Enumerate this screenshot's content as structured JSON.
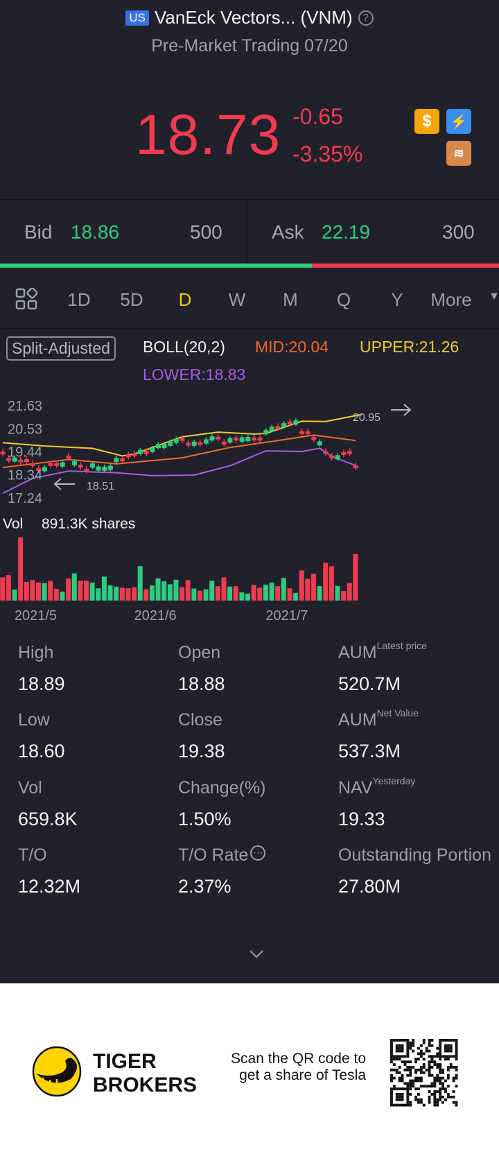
{
  "header": {
    "market_badge": "US",
    "title": "VanEck Vectors... (VNM)",
    "help_icon": "question-circle-icon",
    "subtitle": "Pre-Market Trading 07/20"
  },
  "quote": {
    "price": "18.73",
    "change": "-0.65",
    "change_pct": "-3.35%",
    "badges": [
      "dollar-icon",
      "lightning-level1-icon",
      "stack-a-icon"
    ],
    "badge_colors": {
      "dollar": "#f5a60c",
      "lightning": "#3a8ef0",
      "stack": "#d98a4a"
    },
    "down_color": "#f23a50",
    "up_color": "#2ecc80"
  },
  "orderbook": {
    "bid_label": "Bid",
    "bid_price": "18.86",
    "bid_size": "500",
    "ask_label": "Ask",
    "ask_price": "22.19",
    "ask_size": "300",
    "bid_ratio": 0.625
  },
  "periods": {
    "grid_icon": "grid-layout-icon",
    "items": [
      "1D",
      "5D",
      "D",
      "W",
      "M",
      "Q",
      "Y",
      "More"
    ],
    "active": "D",
    "more_icon": "caret-down-icon"
  },
  "indicators": {
    "split_adjusted": "Split-Adjusted",
    "boll": "BOLL(20,2)",
    "mid": "MID:20.04",
    "upper": "UPPER:21.26",
    "lower": "LOWER:18.83",
    "colors": {
      "mid": "#f0692e",
      "upper": "#f2cd2e",
      "lower": "#a45ce6"
    }
  },
  "chart_data": {
    "type": "candlestick",
    "y_ticks": [
      "21.63",
      "20.53",
      "19.44",
      "18.34",
      "17.24"
    ],
    "ylim": [
      17.24,
      21.63
    ],
    "x_ticks": [
      "2021/5",
      "2021/6",
      "2021/7"
    ],
    "x_tick_index": [
      6.5,
      26.5,
      48.5
    ],
    "annotations": {
      "high": "20.95",
      "low": "18.51"
    },
    "closes": [
      19.38,
      19.07,
      19.07,
      19.0,
      19.02,
      18.83,
      18.59,
      18.61,
      18.83,
      18.83,
      18.83,
      19.18,
      18.89,
      18.75,
      18.56,
      18.78,
      18.64,
      18.63,
      18.67,
      19.05,
      19.05,
      19.24,
      19.29,
      19.43,
      19.4,
      19.52,
      19.71,
      19.71,
      19.82,
      19.96,
      20.02,
      19.8,
      19.82,
      19.82,
      19.93,
      20.07,
      20.09,
      19.85,
      19.98,
      20.04,
      20.02,
      20.04,
      20.04,
      20.04,
      20.37,
      20.53,
      20.59,
      20.7,
      20.81,
      20.83,
      20.35,
      20.35,
      20.07,
      19.84,
      19.4,
      19.19,
      19.18,
      19.35,
      19.4,
      18.72
    ],
    "boll_upper": [
      [
        1,
        19.87
      ],
      [
        8,
        19.71
      ],
      [
        16,
        19.6
      ],
      [
        21,
        19.24
      ],
      [
        23,
        19.33
      ],
      [
        31,
        20.15
      ],
      [
        37,
        20.37
      ],
      [
        43,
        20.28
      ],
      [
        45,
        20.31
      ],
      [
        51,
        20.89
      ],
      [
        55,
        20.88
      ],
      [
        61,
        21.21
      ]
    ],
    "boll_mid": [
      [
        1,
        18.69
      ],
      [
        12,
        19.07
      ],
      [
        20,
        18.86
      ],
      [
        31,
        19.15
      ],
      [
        39,
        19.64
      ],
      [
        47,
        19.97
      ],
      [
        53,
        20.23
      ],
      [
        60,
        19.97
      ]
    ],
    "boll_lower": [
      [
        1,
        17.46
      ],
      [
        6,
        18.17
      ],
      [
        12,
        18.52
      ],
      [
        20,
        18.44
      ],
      [
        26,
        18.3
      ],
      [
        33,
        18.33
      ],
      [
        39,
        18.77
      ],
      [
        45,
        19.48
      ],
      [
        51,
        19.45
      ],
      [
        54,
        19.6
      ],
      [
        56,
        19.22
      ],
      [
        60,
        18.78
      ]
    ],
    "volume_label": "Vol",
    "volume_value": "891.3K shares",
    "volume_k": [
      446,
      491,
      210,
      1213,
      357,
      392,
      348,
      335,
      379,
      223,
      169,
      424,
      522,
      379,
      379,
      343,
      236,
      459,
      290,
      268,
      245,
      236,
      254,
      660,
      214,
      290,
      424,
      370,
      312,
      401,
      259,
      392,
      232,
      192,
      214,
      379,
      277,
      446,
      268,
      277,
      156,
      134,
      303,
      245,
      303,
      343,
      277,
      433,
      236,
      147,
      580,
      415,
      513,
      277,
      723,
      660,
      281,
      187,
      335,
      891
    ],
    "direction": "rrgrrrrgrrgrgrrgggggrrrgrgggggrrgrggrrgrggrrggrgrgrrrgrrgrrr"
  },
  "stats": [
    {
      "label": "High",
      "value": "18.89"
    },
    {
      "label": "Open",
      "value": "18.88"
    },
    {
      "label": "AUM",
      "sup": "Latest price",
      "value": "520.7M"
    },
    {
      "label": "Low",
      "value": "18.60"
    },
    {
      "label": "Close",
      "value": "19.38"
    },
    {
      "label": "AUM",
      "sup": "Net Value",
      "value": "537.3M"
    },
    {
      "label": "Vol",
      "value": "659.8K"
    },
    {
      "label": "Change(%)",
      "value": "1.50%"
    },
    {
      "label": "NAV",
      "sup": "Yesterday",
      "value": "19.33"
    },
    {
      "label": "T/O",
      "value": "12.32M"
    },
    {
      "label": "T/O Rate",
      "value": "2.37%",
      "info_icon": "more-info-icon"
    },
    {
      "label": "Outstanding Portion",
      "value": "27.80M"
    }
  ],
  "expand_icon": "chevron-down-icon",
  "footer": {
    "brand_line1": "TIGER",
    "brand_line2": "BROKERS",
    "promo_line1": "Scan the QR code to",
    "promo_line2": "get a share of Tesla",
    "qr_icon": "qr-code-icon",
    "logo_color": "#ffd400"
  }
}
